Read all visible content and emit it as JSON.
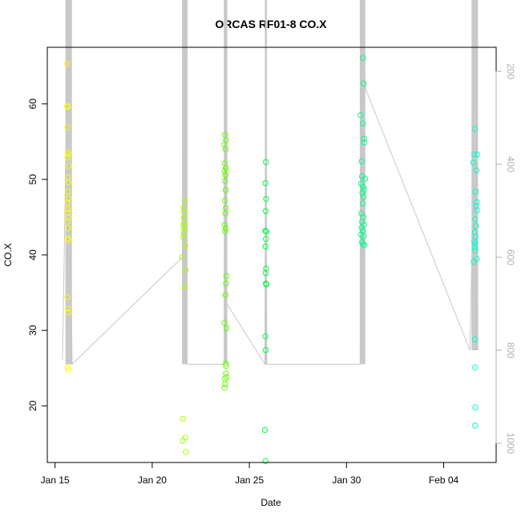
{
  "chart_data": {
    "type": "scatter",
    "title": "ORCAS RF01-8 CO.X",
    "xlabel": "Date",
    "ylabel": "CO.X",
    "x_ticks": [
      "Jan 15",
      "Jan 20",
      "Jan 25",
      "Jan 30",
      "Feb 04"
    ],
    "x_tick_days": [
      15,
      20,
      25,
      30,
      35
    ],
    "xlim": [
      14.6,
      37.7
    ],
    "y_ticks": [
      20,
      30,
      40,
      50,
      60
    ],
    "ylim": [
      12.5,
      67.5
    ],
    "right_axis": {
      "ticks": [
        200,
        400,
        600,
        800,
        1000
      ],
      "range": [
        67.5,
        12.5
      ],
      "color": "#b0b0b0"
    },
    "grid": false,
    "point_style": "open circle",
    "series": [
      {
        "color": "#ffff00",
        "points": [
          {
            "x": 15.6,
            "y": 65.3
          },
          {
            "x": 15.62,
            "y": 59.7
          },
          {
            "x": 15.65,
            "y": 59.6
          },
          {
            "x": 15.63,
            "y": 56.9
          },
          {
            "x": 15.66,
            "y": 53.6
          },
          {
            "x": 15.68,
            "y": 53.3
          },
          {
            "x": 15.64,
            "y": 52.9
          },
          {
            "x": 15.7,
            "y": 51.8
          },
          {
            "x": 15.66,
            "y": 50.3
          },
          {
            "x": 15.69,
            "y": 49.6
          },
          {
            "x": 15.65,
            "y": 48.4
          },
          {
            "x": 15.68,
            "y": 47.5
          },
          {
            "x": 15.63,
            "y": 46.9
          },
          {
            "x": 15.67,
            "y": 46.1
          },
          {
            "x": 15.66,
            "y": 45.6
          },
          {
            "x": 15.7,
            "y": 45.0
          },
          {
            "x": 15.64,
            "y": 44.4
          },
          {
            "x": 15.68,
            "y": 43.5
          },
          {
            "x": 15.66,
            "y": 42.2
          },
          {
            "x": 15.69,
            "y": 42.0
          },
          {
            "x": 15.64,
            "y": 34.4
          },
          {
            "x": 15.66,
            "y": 32.9
          },
          {
            "x": 15.68,
            "y": 32.4
          },
          {
            "x": 15.65,
            "y": 25.1
          },
          {
            "x": 15.69,
            "y": 24.8
          }
        ]
      },
      {
        "color": "#aaff00",
        "points": [
          {
            "x": 21.6,
            "y": 46.2
          },
          {
            "x": 21.65,
            "y": 45.7
          },
          {
            "x": 21.62,
            "y": 44.9
          },
          {
            "x": 21.64,
            "y": 44.2
          },
          {
            "x": 21.61,
            "y": 43.8
          },
          {
            "x": 21.66,
            "y": 43.4
          },
          {
            "x": 21.63,
            "y": 42.9
          },
          {
            "x": 21.6,
            "y": 42.3
          },
          {
            "x": 21.67,
            "y": 47.2
          },
          {
            "x": 21.7,
            "y": 41.2
          },
          {
            "x": 21.55,
            "y": 39.7
          },
          {
            "x": 21.72,
            "y": 38.0
          },
          {
            "x": 21.68,
            "y": 35.8
          },
          {
            "x": 21.58,
            "y": 18.3
          },
          {
            "x": 21.57,
            "y": 15.4
          },
          {
            "x": 21.7,
            "y": 15.8
          },
          {
            "x": 21.73,
            "y": 13.9
          }
        ]
      },
      {
        "color": "#66ff00",
        "points": [
          {
            "x": 23.75,
            "y": 55.9
          },
          {
            "x": 23.8,
            "y": 55.2
          },
          {
            "x": 23.72,
            "y": 54.6
          },
          {
            "x": 23.78,
            "y": 54.0
          },
          {
            "x": 23.74,
            "y": 52.1
          },
          {
            "x": 23.79,
            "y": 51.5
          },
          {
            "x": 23.73,
            "y": 51.1
          },
          {
            "x": 23.77,
            "y": 50.6
          },
          {
            "x": 23.75,
            "y": 49.8
          },
          {
            "x": 23.78,
            "y": 48.6
          },
          {
            "x": 23.74,
            "y": 47.2
          },
          {
            "x": 23.79,
            "y": 46.2
          },
          {
            "x": 23.76,
            "y": 45.5
          },
          {
            "x": 23.73,
            "y": 44.0
          },
          {
            "x": 23.78,
            "y": 43.5
          },
          {
            "x": 23.75,
            "y": 43.1
          },
          {
            "x": 23.82,
            "y": 37.2
          },
          {
            "x": 23.8,
            "y": 36.2
          },
          {
            "x": 23.77,
            "y": 34.7
          },
          {
            "x": 23.72,
            "y": 31.0
          },
          {
            "x": 23.82,
            "y": 30.3
          },
          {
            "x": 23.79,
            "y": 25.6
          },
          {
            "x": 23.8,
            "y": 25.3
          },
          {
            "x": 23.8,
            "y": 24.3
          },
          {
            "x": 23.82,
            "y": 23.8
          },
          {
            "x": 23.74,
            "y": 23.6
          },
          {
            "x": 23.76,
            "y": 22.9
          },
          {
            "x": 23.73,
            "y": 22.4
          }
        ]
      },
      {
        "color": "#00ff44",
        "points": [
          {
            "x": 25.85,
            "y": 52.3
          },
          {
            "x": 25.83,
            "y": 49.5
          },
          {
            "x": 25.86,
            "y": 47.4
          },
          {
            "x": 25.84,
            "y": 45.8
          },
          {
            "x": 25.82,
            "y": 43.2
          },
          {
            "x": 25.87,
            "y": 43.1
          },
          {
            "x": 25.85,
            "y": 42.1
          },
          {
            "x": 25.83,
            "y": 41.1
          },
          {
            "x": 25.86,
            "y": 38.2
          },
          {
            "x": 25.84,
            "y": 37.6
          },
          {
            "x": 25.85,
            "y": 36.2
          },
          {
            "x": 25.87,
            "y": 36.1
          },
          {
            "x": 25.82,
            "y": 29.2
          },
          {
            "x": 25.84,
            "y": 27.4
          },
          {
            "x": 25.8,
            "y": 16.8
          },
          {
            "x": 25.83,
            "y": 12.7
          }
        ]
      },
      {
        "color": "#00ff88",
        "points": [
          {
            "x": 30.85,
            "y": 66.1
          },
          {
            "x": 30.88,
            "y": 62.7
          },
          {
            "x": 30.72,
            "y": 58.5
          },
          {
            "x": 30.84,
            "y": 57.4
          },
          {
            "x": 30.9,
            "y": 55.4
          },
          {
            "x": 30.92,
            "y": 54.9
          },
          {
            "x": 30.78,
            "y": 52.4
          },
          {
            "x": 30.8,
            "y": 50.4
          },
          {
            "x": 30.95,
            "y": 50.1
          },
          {
            "x": 30.75,
            "y": 49.4
          },
          {
            "x": 30.86,
            "y": 49.0
          },
          {
            "x": 30.9,
            "y": 48.6
          },
          {
            "x": 30.82,
            "y": 48.2
          },
          {
            "x": 30.88,
            "y": 47.7
          },
          {
            "x": 30.84,
            "y": 46.8
          },
          {
            "x": 30.76,
            "y": 45.5
          },
          {
            "x": 30.86,
            "y": 45.0
          },
          {
            "x": 30.8,
            "y": 44.4
          },
          {
            "x": 30.9,
            "y": 44.0
          },
          {
            "x": 30.78,
            "y": 43.6
          },
          {
            "x": 30.84,
            "y": 43.2
          },
          {
            "x": 30.74,
            "y": 42.7
          },
          {
            "x": 30.88,
            "y": 42.5
          },
          {
            "x": 30.8,
            "y": 41.7
          },
          {
            "x": 30.85,
            "y": 41.4
          },
          {
            "x": 30.92,
            "y": 41.3
          }
        ]
      },
      {
        "color": "#00ffcc",
        "points": [
          {
            "x": 36.6,
            "y": 56.7
          },
          {
            "x": 36.58,
            "y": 53.3
          },
          {
            "x": 36.72,
            "y": 53.3
          },
          {
            "x": 36.52,
            "y": 52.2
          },
          {
            "x": 36.68,
            "y": 51.2
          },
          {
            "x": 36.65,
            "y": 48.4
          },
          {
            "x": 36.7,
            "y": 47.0
          },
          {
            "x": 36.68,
            "y": 46.5
          },
          {
            "x": 36.72,
            "y": 45.9
          },
          {
            "x": 36.62,
            "y": 44.7
          },
          {
            "x": 36.66,
            "y": 43.8
          },
          {
            "x": 36.6,
            "y": 43.0
          },
          {
            "x": 36.64,
            "y": 42.4
          },
          {
            "x": 36.58,
            "y": 41.8
          },
          {
            "x": 36.62,
            "y": 41.5
          },
          {
            "x": 36.6,
            "y": 41.0
          },
          {
            "x": 36.63,
            "y": 40.6
          },
          {
            "x": 36.7,
            "y": 39.5
          },
          {
            "x": 36.55,
            "y": 39.1
          },
          {
            "x": 36.6,
            "y": 28.8
          },
          {
            "x": 36.62,
            "y": 25.1
          },
          {
            "x": 36.63,
            "y": 19.8
          },
          {
            "x": 36.62,
            "y": 17.4
          }
        ]
      }
    ],
    "altitude_trace": {
      "color": "#c8c8c8",
      "values_on_right_axis": true,
      "points": [
        {
          "x": 15.38,
          "y": 820
        },
        {
          "x": 15.45,
          "y": 650
        },
        {
          "x": 15.55,
          "y": 380
        },
        {
          "x": 15.62,
          "y": 140
        },
        {
          "x": 15.72,
          "y": 140
        },
        {
          "x": 15.78,
          "y": 380
        },
        {
          "x": 15.84,
          "y": 700
        },
        {
          "x": 15.88,
          "y": 830
        },
        {
          "x": 21.55,
          "y": 600
        },
        {
          "x": 21.62,
          "y": 140
        },
        {
          "x": 21.7,
          "y": 140
        },
        {
          "x": 21.74,
          "y": 500
        },
        {
          "x": 21.78,
          "y": 830
        },
        {
          "x": 23.7,
          "y": 830
        },
        {
          "x": 23.74,
          "y": 140
        },
        {
          "x": 23.8,
          "y": 140
        },
        {
          "x": 23.84,
          "y": 700
        },
        {
          "x": 25.8,
          "y": 830
        },
        {
          "x": 25.85,
          "y": 140
        },
        {
          "x": 25.9,
          "y": 830
        },
        {
          "x": 30.7,
          "y": 830
        },
        {
          "x": 30.75,
          "y": 140
        },
        {
          "x": 30.85,
          "y": 140
        },
        {
          "x": 30.93,
          "y": 200
        },
        {
          "x": 31.0,
          "y": 240
        },
        {
          "x": 36.35,
          "y": 800
        },
        {
          "x": 36.45,
          "y": 600
        },
        {
          "x": 36.5,
          "y": 300
        },
        {
          "x": 36.62,
          "y": 140
        },
        {
          "x": 36.7,
          "y": 140
        },
        {
          "x": 36.74,
          "y": 500
        },
        {
          "x": 36.76,
          "y": 800
        }
      ],
      "spikes": [
        {
          "x": [
            15.55,
            15.85
          ],
          "top": 140,
          "bottom": 830
        },
        {
          "x": [
            21.55,
            21.8
          ],
          "top": 140,
          "bottom": 830
        },
        {
          "x": [
            23.7,
            23.85
          ],
          "top": 140,
          "bottom": 830
        },
        {
          "x": [
            25.82,
            25.88
          ],
          "top": 140,
          "bottom": 830
        },
        {
          "x": [
            30.7,
            30.95
          ],
          "top": 140,
          "bottom": 830
        },
        {
          "x": [
            36.45,
            36.75
          ],
          "top": 140,
          "bottom": 800
        }
      ]
    }
  }
}
